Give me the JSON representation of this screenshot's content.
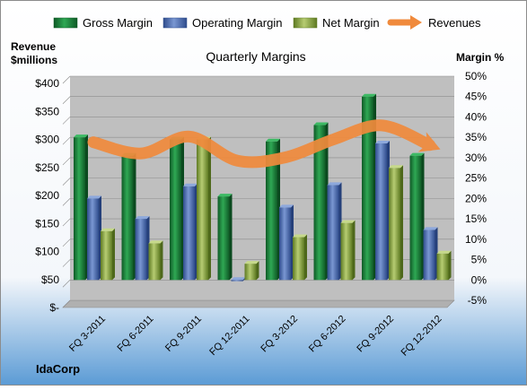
{
  "chart_data": {
    "type": "bar",
    "title": "Quarterly Margins",
    "categories": [
      "FQ 3-2011",
      "FQ 6-2011",
      "FQ 9-2011",
      "FQ 12-2011",
      "FQ 3-2012",
      "FQ 6-2012",
      "FQ 9-2012",
      "FQ 12-2012"
    ],
    "series": [
      {
        "name": "Gross Margin",
        "axis": "right",
        "values": [
          35,
          30.5,
          34.5,
          20.5,
          34,
          38,
          45,
          30.5
        ]
      },
      {
        "name": "Operating Margin",
        "axis": "right",
        "values": [
          20,
          15,
          23,
          -0.3,
          17.8,
          23.3,
          33.5,
          12.3
        ]
      },
      {
        "name": "Net Margin",
        "axis": "right",
        "values": [
          12,
          9,
          34.5,
          4,
          10.5,
          14,
          27.5,
          6.5
        ]
      },
      {
        "name": "Revenues",
        "type": "line",
        "axis": "left",
        "values": [
          295,
          275,
          305,
          262,
          268,
          300,
          325,
          290
        ]
      }
    ],
    "left_axis": {
      "label_line1": "Revenue",
      "label_line2": "$millions",
      "range": [
        0,
        400
      ],
      "ticks": [
        "$-",
        "$50",
        "$100",
        "$150",
        "$200",
        "$250",
        "$300",
        "$350",
        "$400"
      ]
    },
    "right_axis": {
      "label": "Margin %",
      "range": [
        -5,
        50
      ],
      "ticks": [
        "-5%",
        "0%",
        "5%",
        "10%",
        "15%",
        "20%",
        "25%",
        "30%",
        "35%",
        "40%",
        "45%",
        "50%"
      ]
    },
    "legend_position": "top",
    "grid": true,
    "footer_label": "IdaCorp",
    "colors": {
      "gross": "#1E7E3C",
      "operating": "#4F6FB0",
      "net": "#8FA84A",
      "revenue": "#F08A3C",
      "plot_bg": "#BFBFBF",
      "outer_top": "#FFFFFF",
      "outer_bottom": "#5B9BD5"
    }
  }
}
